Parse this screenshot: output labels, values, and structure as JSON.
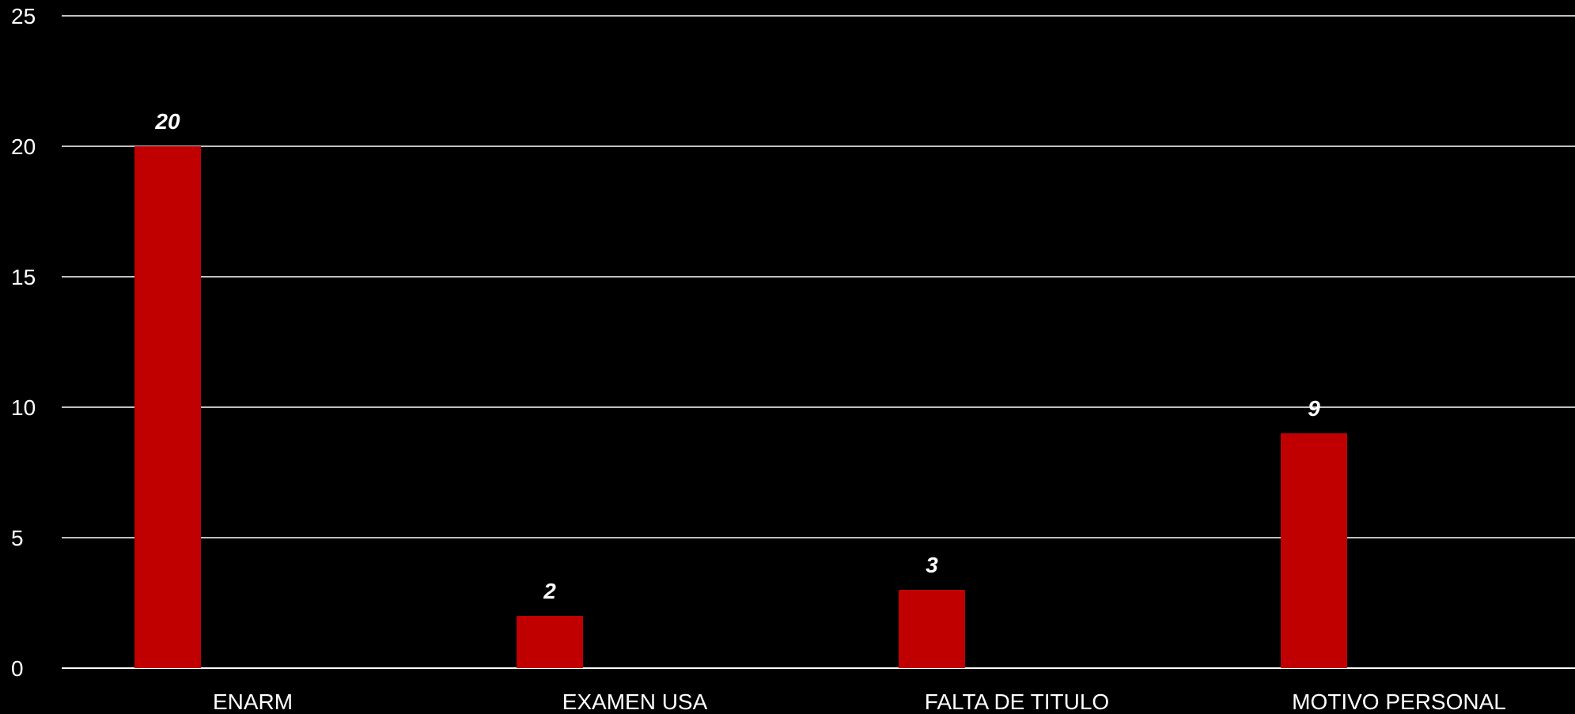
{
  "chart_data": {
    "type": "bar",
    "categories": [
      "ENARM",
      "EXAMEN USA",
      "FALTA DE TITULO",
      "MOTIVO PERSONAL"
    ],
    "values": [
      20,
      2,
      3,
      9
    ],
    "data_labels": [
      "20",
      "2",
      "3",
      "9"
    ],
    "y_ticks": [
      "0",
      "5",
      "10",
      "15",
      "20",
      "25"
    ],
    "y_tick_values": [
      0,
      5,
      10,
      15,
      20,
      25
    ],
    "ylim": [
      0,
      25
    ],
    "grid": true,
    "title": "",
    "xlabel": "",
    "ylabel": "",
    "colors": {
      "bar": "#c00000",
      "background": "#000000",
      "grid": "#ffffff",
      "text": "#ffffff"
    }
  }
}
